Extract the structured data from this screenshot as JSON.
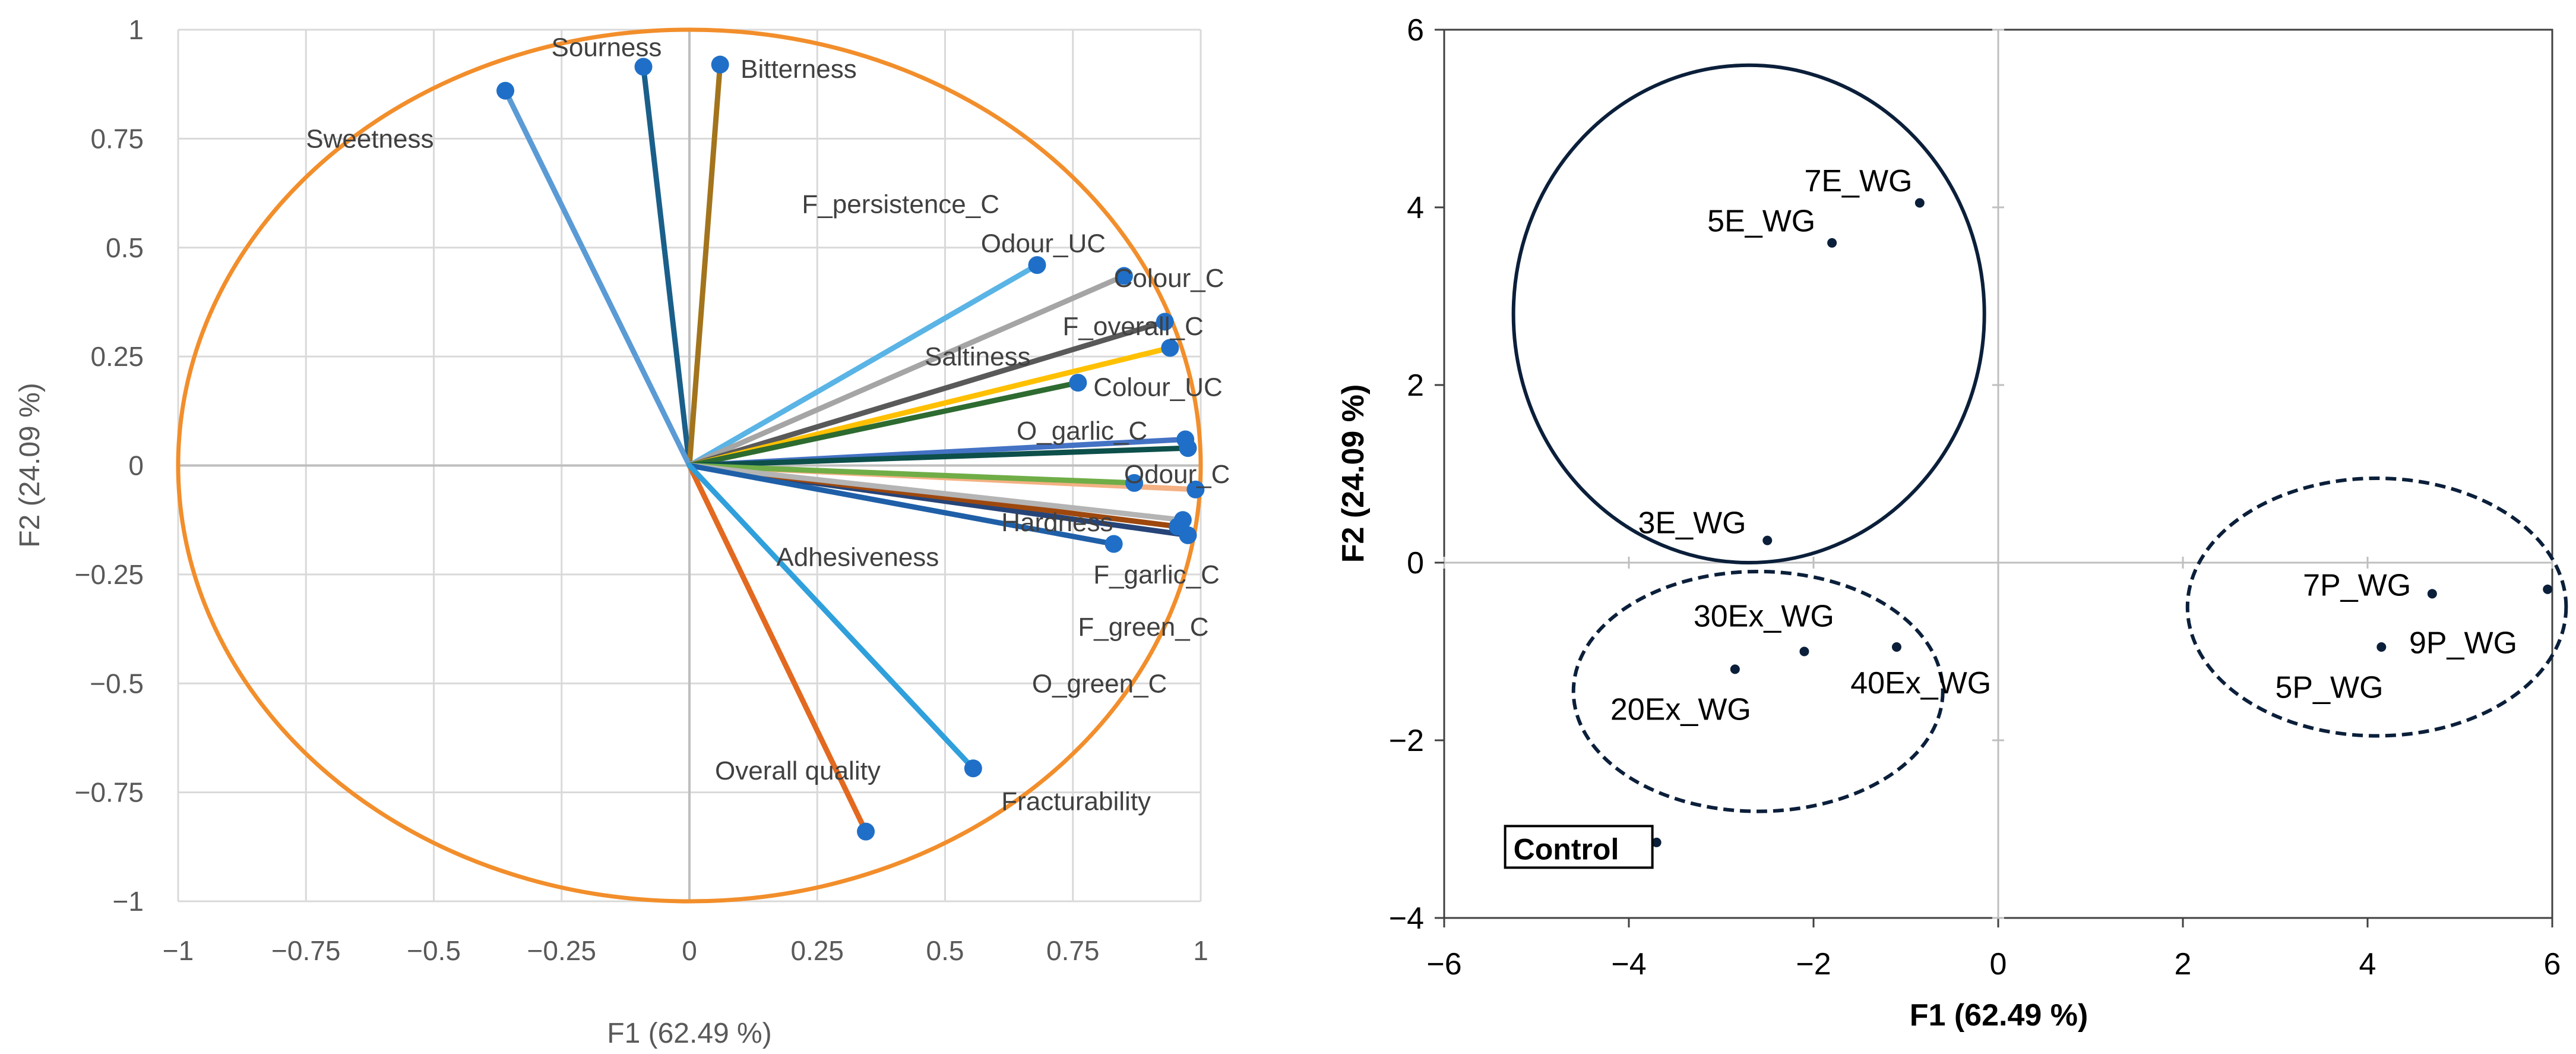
{
  "chart_data": [
    {
      "type": "scatter",
      "subtype": "correlation-circle",
      "xlabel": "F1 (62.49 %)",
      "ylabel": "F2 (24.09 %)",
      "xlim": [
        -1,
        1
      ],
      "ylim": [
        -1,
        1
      ],
      "xticks": [
        -1,
        -0.75,
        -0.5,
        -0.25,
        0,
        0.25,
        0.5,
        0.75,
        1
      ],
      "xtick_labels": [
        "−1",
        "−0.75",
        "−0.5",
        "−0.25",
        "0",
        "0.25",
        "0.5",
        "0.75",
        "1"
      ],
      "yticks": [
        1,
        0.75,
        0.5,
        0.25,
        0,
        -0.25,
        -0.5,
        -0.75,
        -1
      ],
      "ytick_labels": [
        "1",
        "0.75",
        "0.5",
        "0.25",
        "0",
        "−0.25",
        "−0.5",
        "−0.75",
        "−1"
      ],
      "grid": true,
      "circle_color": "#f28e2b",
      "point_color": "#1f6fc8",
      "variables": [
        {
          "name": "Sourness",
          "x": -0.09,
          "y": 0.915,
          "color": "#1a5f8a",
          "label_x": -0.27,
          "label_y": 0.96
        },
        {
          "name": "Bitterness",
          "x": 0.06,
          "y": 0.92,
          "color": "#a3741c",
          "label_x": 0.1,
          "label_y": 0.91
        },
        {
          "name": "Sweetness",
          "x": -0.36,
          "y": 0.86,
          "color": "#5b9bd5",
          "label_x": -0.75,
          "label_y": 0.75
        },
        {
          "name": "F_persistence_C",
          "x": 0.97,
          "y": 0.06,
          "color": "#4472c4",
          "label_x": 0.22,
          "label_y": 0.6
        },
        {
          "name": "Odour_UC",
          "x": 0.68,
          "y": 0.46,
          "color": "#5ab4e5",
          "label_x": 0.57,
          "label_y": 0.51
        },
        {
          "name": "Colour_C",
          "x": 0.85,
          "y": 0.435,
          "color": "#a5a5a5",
          "label_x": 0.83,
          "label_y": 0.43
        },
        {
          "name": "F_overall_C",
          "x": 0.93,
          "y": 0.33,
          "color": "#595959",
          "label_x": 0.73,
          "label_y": 0.32
        },
        {
          "name": "Saltiness",
          "x": 0.94,
          "y": 0.27,
          "color": "#ffc000",
          "label_x": 0.46,
          "label_y": 0.25
        },
        {
          "name": "Colour_UC",
          "x": 0.76,
          "y": 0.19,
          "color": "#2e6b30",
          "label_x": 0.79,
          "label_y": 0.18
        },
        {
          "name": "O_garlic_C",
          "x": 0.975,
          "y": 0.04,
          "color": "#0d4f4a",
          "label_x": 0.64,
          "label_y": 0.08
        },
        {
          "name": "Odour_C",
          "x": 0.99,
          "y": -0.055,
          "color": "#f4b183",
          "label_x": 0.85,
          "label_y": -0.02
        },
        {
          "name": "Hardness",
          "x": 0.87,
          "y": -0.04,
          "color": "#70ad47",
          "label_x": 0.61,
          "label_y": -0.13
        },
        {
          "name": "F_garlic_C",
          "x": 0.975,
          "y": -0.16,
          "color": "#264478",
          "label_x": 0.79,
          "label_y": -0.25
        },
        {
          "name": "F_green_C",
          "x": 0.955,
          "y": -0.14,
          "color": "#9e480e",
          "label_x": 0.76,
          "label_y": -0.37
        },
        {
          "name": "O_green_C",
          "x": 0.965,
          "y": -0.125,
          "color": "#b4b4b4",
          "label_x": 0.67,
          "label_y": -0.5
        },
        {
          "name": "Adhesiveness",
          "x": 0.83,
          "y": -0.18,
          "color": "#1f5fa8",
          "label_x": 0.17,
          "label_y": -0.21
        },
        {
          "name": "Overall quality",
          "x": 0.345,
          "y": -0.84,
          "color": "#e2691f",
          "label_x": 0.05,
          "label_y": -0.7
        },
        {
          "name": "Fracturability",
          "x": 0.555,
          "y": -0.695,
          "color": "#2fa0dc",
          "label_x": 0.61,
          "label_y": -0.77
        }
      ]
    },
    {
      "type": "scatter",
      "subtype": "observations",
      "xlabel": "F1 (62.49 %)",
      "ylabel": "F2 (24.09 %)",
      "xlim": [
        -6,
        6
      ],
      "ylim": [
        -4,
        6
      ],
      "xticks": [
        -6,
        -4,
        -2,
        0,
        2,
        4,
        6
      ],
      "xtick_labels": [
        "−6",
        "−4",
        "−2",
        "0",
        "2",
        "4",
        "6"
      ],
      "yticks": [
        6,
        4,
        2,
        0,
        -2,
        -4
      ],
      "ytick_labels": [
        "6",
        "4",
        "2",
        "0",
        "−2",
        "−4"
      ],
      "grid": false,
      "point_color": "#0b1f3a",
      "ellipse_color": "#0b1f3a",
      "points": [
        {
          "name": "7E_WG",
          "x": -0.85,
          "y": 4.05,
          "label_x": -2.1,
          "label_y": 4.3
        },
        {
          "name": "5E_WG",
          "x": -1.8,
          "y": 3.6,
          "label_x": -3.15,
          "label_y": 3.85
        },
        {
          "name": "3E_WG",
          "x": -2.5,
          "y": 0.25,
          "label_x": -3.9,
          "label_y": 0.45
        },
        {
          "name": "30Ex_WG",
          "x": -2.1,
          "y": -1.0,
          "label_x": -3.3,
          "label_y": -0.6
        },
        {
          "name": "20Ex_WG",
          "x": -2.85,
          "y": -1.2,
          "label_x": -4.2,
          "label_y": -1.65
        },
        {
          "name": "40Ex_WG",
          "x": -1.1,
          "y": -0.95,
          "label_x": -1.6,
          "label_y": -1.35
        },
        {
          "name": "Control",
          "x": -3.7,
          "y": -3.15,
          "label_x": -5.25,
          "label_y": -3.3
        },
        {
          "name": "7P_WG",
          "x": 4.7,
          "y": -0.35,
          "label_x": 3.3,
          "label_y": -0.25
        },
        {
          "name": "9P_WG",
          "x": 5.95,
          "y": -0.3,
          "label_x": 4.45,
          "label_y": -0.9
        },
        {
          "name": "5P_WG",
          "x": 4.15,
          "y": -0.95,
          "label_x": 3.0,
          "label_y": -1.4
        }
      ],
      "ellipses": [
        {
          "group": "E",
          "cx": -2.7,
          "cy": 2.8,
          "rx": 2.55,
          "ry": 2.8,
          "style": "solid"
        },
        {
          "group": "Ex",
          "cx": -2.6,
          "cy": -1.45,
          "rx": 2.0,
          "ry": 1.35,
          "style": "dashed"
        },
        {
          "group": "P",
          "cx": 4.1,
          "cy": -0.5,
          "rx": 2.05,
          "ry": 1.45,
          "style": "dashed"
        }
      ]
    }
  ]
}
